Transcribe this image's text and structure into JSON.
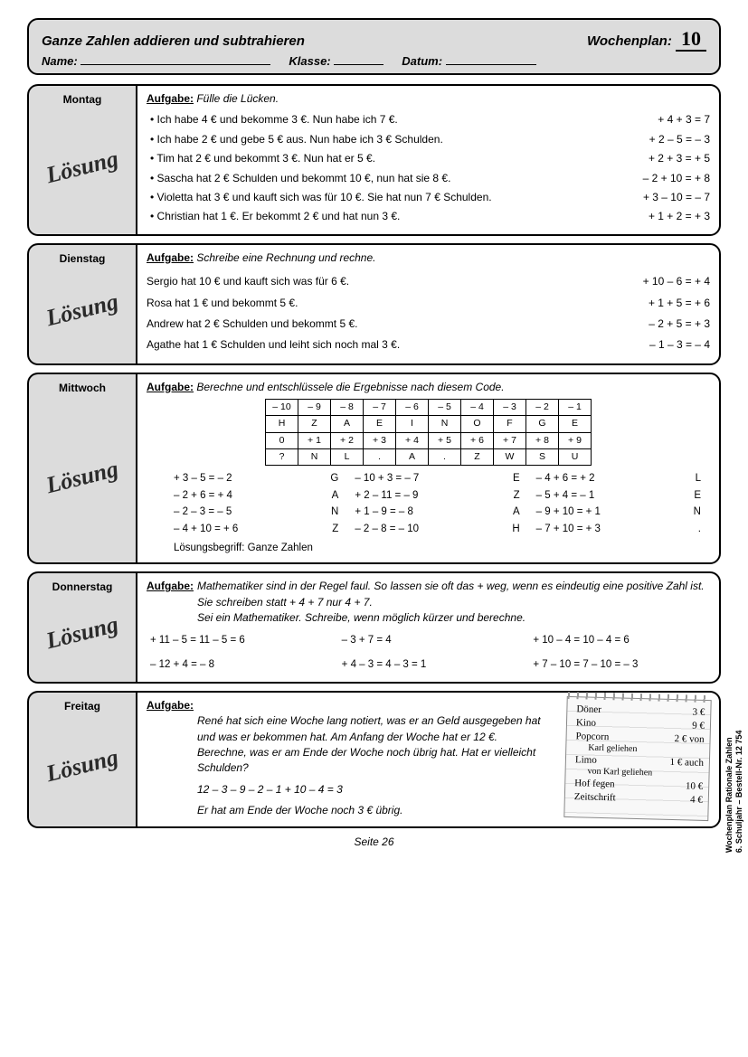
{
  "header": {
    "title": "Ganze Zahlen addieren und subtrahieren",
    "wp_label": "Wochenplan:",
    "wp_num": "10",
    "name_label": "Name:",
    "klasse_label": "Klasse:",
    "datum_label": "Datum:"
  },
  "loesung_label": "Lösung",
  "aufgabe_label": "Aufgabe:",
  "montag": {
    "day": "Montag",
    "instr": "Fülle die Lücken.",
    "items": [
      {
        "txt": "Ich habe 4 € und bekomme 3 €. Nun habe ich 7 €.",
        "eq": "+ 4 + 3 = 7"
      },
      {
        "txt": "Ich habe 2 € und gebe 5  € aus. Nun habe ich 3 € Schulden.",
        "eq": "+ 2 – 5 = – 3"
      },
      {
        "txt": "Tim hat 2 € und bekommt 3 €. Nun hat er 5 €.",
        "eq": "+ 2 + 3 = + 5"
      },
      {
        "txt": "Sascha hat 2 € Schulden und bekommt 10 €, nun hat sie 8 €.",
        "eq": "– 2 + 10 = + 8"
      },
      {
        "txt": "Violetta hat 3 € und kauft sich was für 10 €. Sie hat nun 7 € Schulden.",
        "eq": "+ 3 – 10 = – 7"
      },
      {
        "txt": "Christian hat 1 €. Er bekommt 2 € und hat nun 3 €.",
        "eq": "+ 1 + 2 = + 3"
      }
    ]
  },
  "dienstag": {
    "day": "Dienstag",
    "instr": "Schreibe eine Rechnung und rechne.",
    "items": [
      {
        "txt": "Sergio hat 10 € und kauft sich was für 6 €.",
        "eq": "+ 10 – 6 = + 4"
      },
      {
        "txt": "Rosa hat 1 € und bekommt 5 €.",
        "eq": "+ 1 + 5 = + 6"
      },
      {
        "txt": "Andrew hat 2 € Schulden und bekommt 5 €.",
        "eq": "– 2 + 5 = + 3"
      },
      {
        "txt": "Agathe hat 1 € Schulden und leiht sich noch mal 3 €.",
        "eq": "– 1 – 3 = – 4"
      }
    ]
  },
  "mittwoch": {
    "day": "Mittwoch",
    "instr": "Berechne und entschlüssele die Ergebnisse nach diesem Code.",
    "code_rows": [
      [
        "– 10",
        "– 9",
        "– 8",
        "– 7",
        "– 6",
        "– 5",
        "– 4",
        "– 3",
        "– 2",
        "– 1"
      ],
      [
        "H",
        "Z",
        "A",
        "E",
        "I",
        "N",
        "O",
        "F",
        "G",
        "E"
      ],
      [
        "0",
        "+ 1",
        "+ 2",
        "+ 3",
        "+ 4",
        "+ 5",
        "+ 6",
        "+ 7",
        "+ 8",
        "+ 9"
      ],
      [
        "?",
        "N",
        "L",
        ".",
        "A",
        ".",
        "Z",
        "W",
        "S",
        "U"
      ]
    ],
    "calcs": [
      {
        "eq": "+ 3 – 5 = – 2",
        "let": "G"
      },
      {
        "eq": "– 10 + 3 = – 7",
        "let": "E"
      },
      {
        "eq": "– 4 + 6 = + 2",
        "let": "L"
      },
      {
        "eq": "– 2 + 6 = + 4",
        "let": "A"
      },
      {
        "eq": "+ 2 – 11 = – 9",
        "let": "Z"
      },
      {
        "eq": "– 5 + 4 = – 1",
        "let": "E"
      },
      {
        "eq": "– 2 – 3 = – 5",
        "let": "N"
      },
      {
        "eq": "+ 1 – 9 = – 8",
        "let": "A"
      },
      {
        "eq": "– 9 + 10 = + 1",
        "let": "N"
      },
      {
        "eq": "– 4 + 10 = + 6",
        "let": "Z"
      },
      {
        "eq": "– 2 – 8 = – 10",
        "let": "H"
      },
      {
        "eq": "– 7 + 10 = + 3",
        "let": "."
      }
    ],
    "solution_label": "Lösungsbegriff: Ganze Zahlen"
  },
  "donnerstag": {
    "day": "Donnerstag",
    "instr": "Mathematiker sind in der Regel faul. So lassen sie oft das + weg, wenn es eindeutig eine positive Zahl ist.\nSie schreiben statt + 4 + 7 nur 4 + 7.\nSei ein Mathematiker. Schreibe, wenn möglich kürzer und berechne.",
    "items": [
      "+ 11 – 5 = 11 – 5 = 6",
      "– 3 + 7 = 4",
      "+ 10 – 4 = 10 – 4 = 6",
      "– 12 + 4 = – 8",
      "+ 4 – 3 = 4 – 3 = 1",
      "+ 7 – 10 = 7 – 10 = – 3"
    ]
  },
  "freitag": {
    "day": "Freitag",
    "instr": "René hat sich eine Woche lang notiert, was er an Geld ausgegeben hat und was er bekommen hat. Am Anfang der Woche hat er 12 €.\nBerechne, was er am Ende der Woche noch übrig hat. Hat er vielleicht Schulden?",
    "calc": "12 – 3 – 9 – 2 – 1 + 10 – 4 = 3",
    "answer": "Er hat am Ende der Woche noch 3 € übrig.",
    "note": [
      {
        "l": "Döner",
        "r": "3 €"
      },
      {
        "l": "Kino",
        "r": "9 €"
      },
      {
        "l": "Popcorn",
        "r": "2 € von",
        "sub": "Karl geliehen"
      },
      {
        "l": "Limo",
        "r": "1 € auch",
        "sub": "von Karl geliehen"
      },
      {
        "l": "Hof fegen",
        "r": "10 €"
      },
      {
        "l": "Zeitschrift",
        "r": "4 €"
      }
    ]
  },
  "footer": {
    "page": "Seite 26",
    "side1": "Wochenplan Rationale Zahlen",
    "side2": "6. Schuljahr  –  Bestell-Nr. 12 754"
  }
}
